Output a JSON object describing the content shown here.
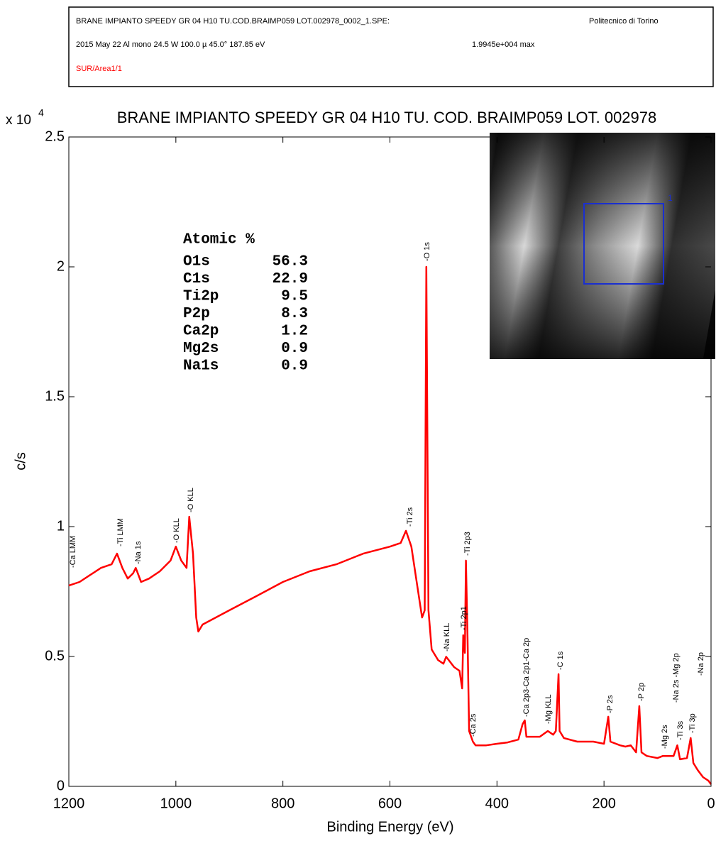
{
  "header": {
    "line1": "BRANE IMPIANTO SPEEDY GR 04 H10 TU.COD.BRAIMP059 LOT.002978_0002_1.SPE:",
    "institution": "Politecnico di Torino",
    "line2": "2015 May 22  Al mono  24.5 W  100.0 µ  45.0°  187.85 eV",
    "max_label": "1.9945e+004 max",
    "area": "SUR/Area1/1"
  },
  "chart_data": {
    "type": "line",
    "title": "BRANE IMPIANTO  SPEEDY GR 04  H10 TU.  COD.  BRAIMP059  LOT.  002978",
    "x_label": "Binding Energy (eV)",
    "y_label": "c/s",
    "y_scale_label": "x 10",
    "y_scale_exponent": "4",
    "color": "#ff0000",
    "xlim": [
      1200,
      0
    ],
    "xticks": [
      1200,
      1000,
      800,
      600,
      400,
      200,
      0
    ],
    "ylim": [
      0,
      25000
    ],
    "yticks": [
      0,
      {
        "value": 5000,
        "label": "0.5"
      },
      {
        "value": 10000,
        "label": "1"
      },
      {
        "value": 15000,
        "label": "1.5"
      },
      {
        "value": 20000,
        "label": "2"
      },
      {
        "value": 25000,
        "label": "2.5"
      }
    ],
    "x": [
      1200,
      1180,
      1160,
      1140,
      1120,
      1110,
      1100,
      1090,
      1080,
      1075,
      1065,
      1050,
      1030,
      1010,
      1000,
      990,
      980,
      975,
      968,
      962,
      958,
      950,
      900,
      850,
      800,
      750,
      700,
      650,
      600,
      580,
      570,
      560,
      550,
      540,
      535,
      532,
      528,
      522,
      510,
      500,
      495,
      480,
      470,
      465,
      463,
      460,
      458,
      455,
      452,
      445,
      440,
      420,
      400,
      380,
      360,
      352,
      348,
      345,
      320,
      305,
      295,
      290,
      285,
      283,
      275,
      250,
      220,
      200,
      192,
      188,
      170,
      160,
      150,
      140,
      134,
      130,
      120,
      100,
      90,
      70,
      63,
      58,
      45,
      38,
      33,
      25,
      15,
      5,
      0
    ],
    "values": [
      7730,
      7870,
      8140,
      8410,
      8550,
      8960,
      8410,
      8000,
      8200,
      8410,
      7870,
      8000,
      8280,
      8690,
      9230,
      8690,
      8410,
      10380,
      8960,
      6500,
      5960,
      6230,
      6780,
      7320,
      7870,
      8280,
      8550,
      8960,
      9230,
      9370,
      9840,
      9230,
      7870,
      6500,
      6780,
      20000,
      6780,
      5270,
      4860,
      4720,
      4990,
      4590,
      4450,
      3770,
      5820,
      5140,
      8690,
      5680,
      2130,
      1720,
      1580,
      1580,
      1640,
      1690,
      1800,
      2400,
      2540,
      1910,
      1910,
      2130,
      1990,
      2130,
      4320,
      2130,
      1860,
      1720,
      1720,
      1640,
      2680,
      1720,
      1580,
      1530,
      1580,
      1310,
      3090,
      1310,
      1170,
      1090,
      1170,
      1170,
      1580,
      1040,
      1090,
      1860,
      900,
      630,
      355,
      220,
      80
    ],
    "annotations": [
      "-Ca LMM",
      "-Ti LMM",
      "-Na 1s",
      "-O KLL",
      "-O KLL",
      "-Ti 2s",
      "-O 1s",
      "-Na KLL",
      "-Ti 2p1",
      "-Ti 2p3",
      "-Ca 2s",
      "-Ca 2p3-Ca 2p1-Ca 2p",
      "-Mg KLL",
      "-C 1s",
      "-P 2s",
      "-P 2p",
      "-Mg 2s",
      "-Ti 3s",
      "-Ti 3p",
      "-Na 2s -Mg 2p",
      "-Na 2p"
    ],
    "stats_table": {
      "title": "Atomic %",
      "rows": [
        [
          "O1s",
          56.3
        ],
        [
          "C1s",
          22.9
        ],
        [
          "Ti2p",
          9.5
        ],
        [
          "P2p",
          8.3
        ],
        [
          "Ca2p",
          1.2
        ],
        [
          "Mg2s",
          0.9
        ],
        [
          "Na1s",
          0.9
        ]
      ]
    },
    "inset_region_label": "1"
  }
}
